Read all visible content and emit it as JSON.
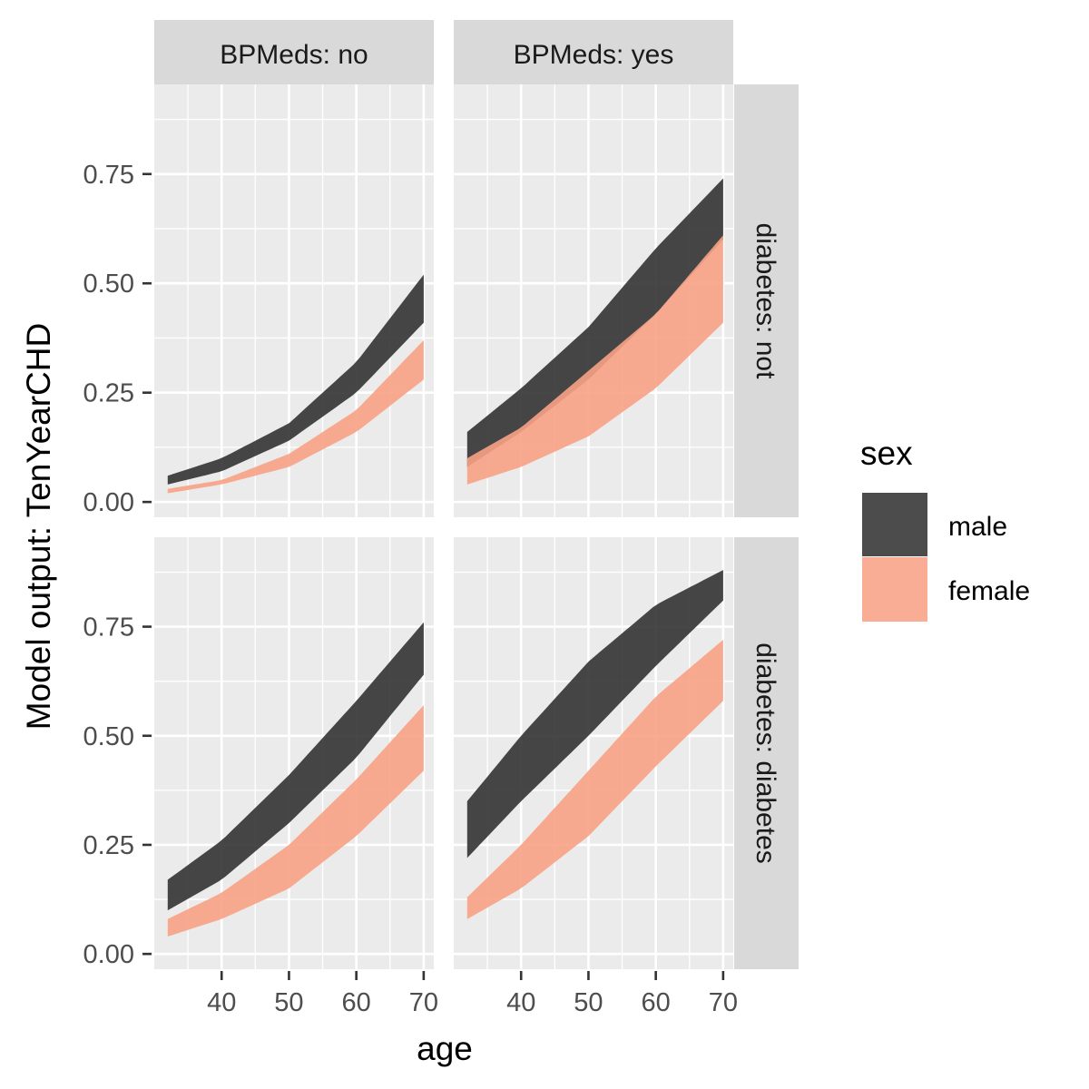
{
  "chart_data": {
    "type": "area",
    "subtype": "ribbon-facet-grid",
    "xlabel": "age",
    "ylabel": "Model output: TenYearCHD",
    "x_ticks": [
      40,
      50,
      60,
      70
    ],
    "y_ticks": [
      0.0,
      0.25,
      0.5,
      0.75
    ],
    "y_tick_labels": [
      "0.00",
      "0.25",
      "0.50",
      "0.75"
    ],
    "xlim": [
      32,
      70
    ],
    "ylim": [
      0,
      0.9
    ],
    "grid": true,
    "legend": {
      "title": "sex",
      "placement": "right",
      "entries": [
        {
          "name": "male",
          "color": "#333333"
        },
        {
          "name": "female",
          "color": "#f8a285"
        }
      ]
    },
    "col_strips": [
      "BPMeds: no",
      "BPMeds: yes"
    ],
    "row_strips": [
      "diabetes: not",
      "diabetes: diabetes"
    ],
    "x": [
      32,
      40,
      50,
      60,
      70
    ],
    "panels": [
      {
        "row": 0,
        "col": 0,
        "series": [
          {
            "name": "male",
            "lower": [
              0.04,
              0.07,
              0.14,
              0.25,
              0.41
            ],
            "upper": [
              0.06,
              0.1,
              0.18,
              0.32,
              0.52
            ]
          },
          {
            "name": "female",
            "lower": [
              0.02,
              0.04,
              0.08,
              0.16,
              0.28
            ],
            "upper": [
              0.03,
              0.05,
              0.11,
              0.21,
              0.37
            ]
          }
        ]
      },
      {
        "row": 0,
        "col": 1,
        "series": [
          {
            "name": "male",
            "lower": [
              0.08,
              0.16,
              0.28,
              0.43,
              0.6
            ],
            "upper": [
              0.16,
              0.26,
              0.4,
              0.58,
              0.74
            ]
          },
          {
            "name": "female",
            "lower": [
              0.04,
              0.08,
              0.15,
              0.26,
              0.41
            ],
            "upper": [
              0.1,
              0.17,
              0.3,
              0.43,
              0.61
            ]
          }
        ]
      },
      {
        "row": 1,
        "col": 0,
        "series": [
          {
            "name": "male",
            "lower": [
              0.1,
              0.17,
              0.3,
              0.45,
              0.64
            ],
            "upper": [
              0.17,
              0.26,
              0.41,
              0.58,
              0.76
            ]
          },
          {
            "name": "female",
            "lower": [
              0.04,
              0.08,
              0.15,
              0.27,
              0.42
            ],
            "upper": [
              0.08,
              0.14,
              0.25,
              0.4,
              0.57
            ]
          }
        ]
      },
      {
        "row": 1,
        "col": 1,
        "series": [
          {
            "name": "male",
            "lower": [
              0.22,
              0.35,
              0.5,
              0.66,
              0.81
            ],
            "upper": [
              0.35,
              0.5,
              0.67,
              0.8,
              0.88
            ]
          },
          {
            "name": "female",
            "lower": [
              0.08,
              0.15,
              0.27,
              0.43,
              0.58
            ],
            "upper": [
              0.13,
              0.25,
              0.42,
              0.59,
              0.72
            ]
          }
        ]
      }
    ]
  }
}
